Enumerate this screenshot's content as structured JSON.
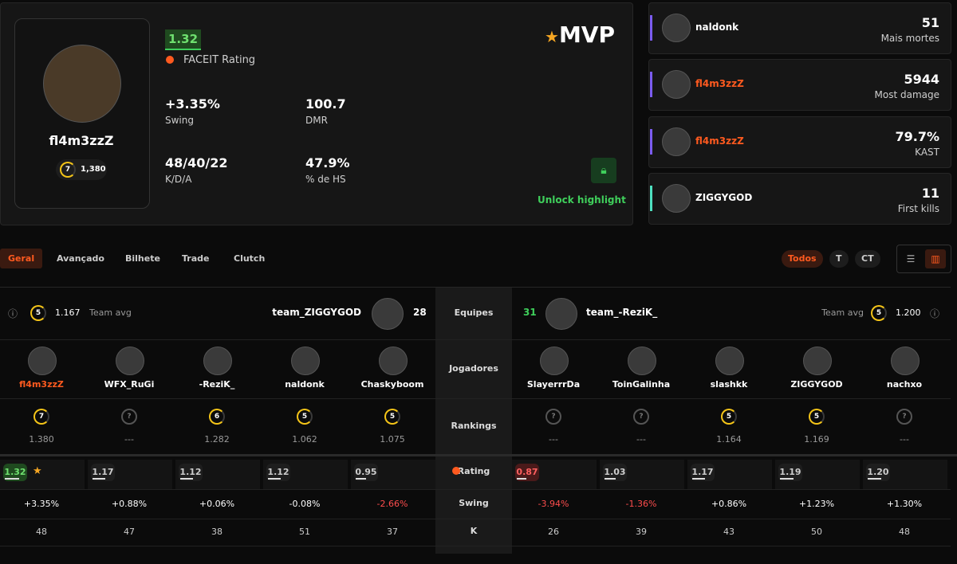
{
  "player_card": {
    "name": "fl4m3zzZ",
    "level": "7",
    "elo": "1,380"
  },
  "rating": {
    "value": "1.32",
    "label": "FACEIT Rating"
  },
  "stats": [
    {
      "value": "+3.35%",
      "label": "Swing"
    },
    {
      "value": "100.7",
      "label": "DMR"
    },
    {
      "value": "48/40/22",
      "label": "K/D/A"
    },
    {
      "value": "47.9%",
      "label": "% de HS"
    }
  ],
  "mvp": "MVP",
  "unlock": "Unlock highlight",
  "highlights": [
    {
      "name": "naldonk",
      "value": 51,
      "label": "Mais mortes"
    },
    {
      "name": "fl4m3zzZ",
      "value": 5944,
      "label": "Most damage"
    },
    {
      "name": "fl4m3zzZ",
      "value": "79.7%",
      "label": "KAST"
    },
    {
      "name": "ZIGGYGOD",
      "value": 11,
      "label": "First kills"
    }
  ],
  "tabs": [
    "Geral",
    "Avançado",
    "Bilhete",
    "Trade",
    "Clutch"
  ],
  "sides": [
    "Todos",
    "T",
    "CT"
  ],
  "row_labels": {
    "teams": "Equipes",
    "players": "Jogadores",
    "rankings": "Rankings",
    "rating": "Rating",
    "swing": "Swing",
    "k": "K"
  },
  "teams": [
    {
      "level": "5",
      "avg": "1.167",
      "avg_label": "Team avg",
      "name": "team_ZIGGYGOD",
      "score": 28,
      "players": [
        {
          "name": "fl4m3zzZ",
          "level": "7",
          "elo": "1.380",
          "rating": "1.32",
          "swing": "+3.35%",
          "k": 48
        },
        {
          "name": "WFX_RuGi",
          "level": "?",
          "elo": "---",
          "rating": "1.17",
          "swing": "+0.88%",
          "k": 47
        },
        {
          "name": "-ReziK_",
          "level": "6",
          "elo": "1.282",
          "rating": "1.12",
          "swing": "+0.06%",
          "k": 38
        },
        {
          "name": "naldonk",
          "level": "5",
          "elo": "1.062",
          "rating": "1.12",
          "swing": "-0.08%",
          "k": 51
        },
        {
          "name": "Chaskyboom",
          "level": "5",
          "elo": "1.075",
          "rating": "0.95",
          "swing": "-2.66%",
          "k": 37
        }
      ]
    },
    {
      "level": "5",
      "avg": "1.200",
      "avg_label": "Team avg",
      "name": "team_-ReziK_",
      "score": 31,
      "players": [
        {
          "name": "SlayerrrDa",
          "level": "?",
          "elo": "---",
          "rating": "0.87",
          "swing": "-3.94%",
          "k": 26
        },
        {
          "name": "ToinGalinha",
          "level": "?",
          "elo": "---",
          "rating": "1.03",
          "swing": "-1.36%",
          "k": 39
        },
        {
          "name": "slashkk",
          "level": "5",
          "elo": "1.164",
          "rating": "1.17",
          "swing": "+0.86%",
          "k": 43
        },
        {
          "name": "ZIGGYGOD",
          "level": "5",
          "elo": "1.169",
          "rating": "1.19",
          "swing": "+1.23%",
          "k": 50
        },
        {
          "name": "nachxo",
          "level": "?",
          "elo": "---",
          "rating": "1.20",
          "swing": "+1.30%",
          "k": 48
        }
      ]
    }
  ]
}
